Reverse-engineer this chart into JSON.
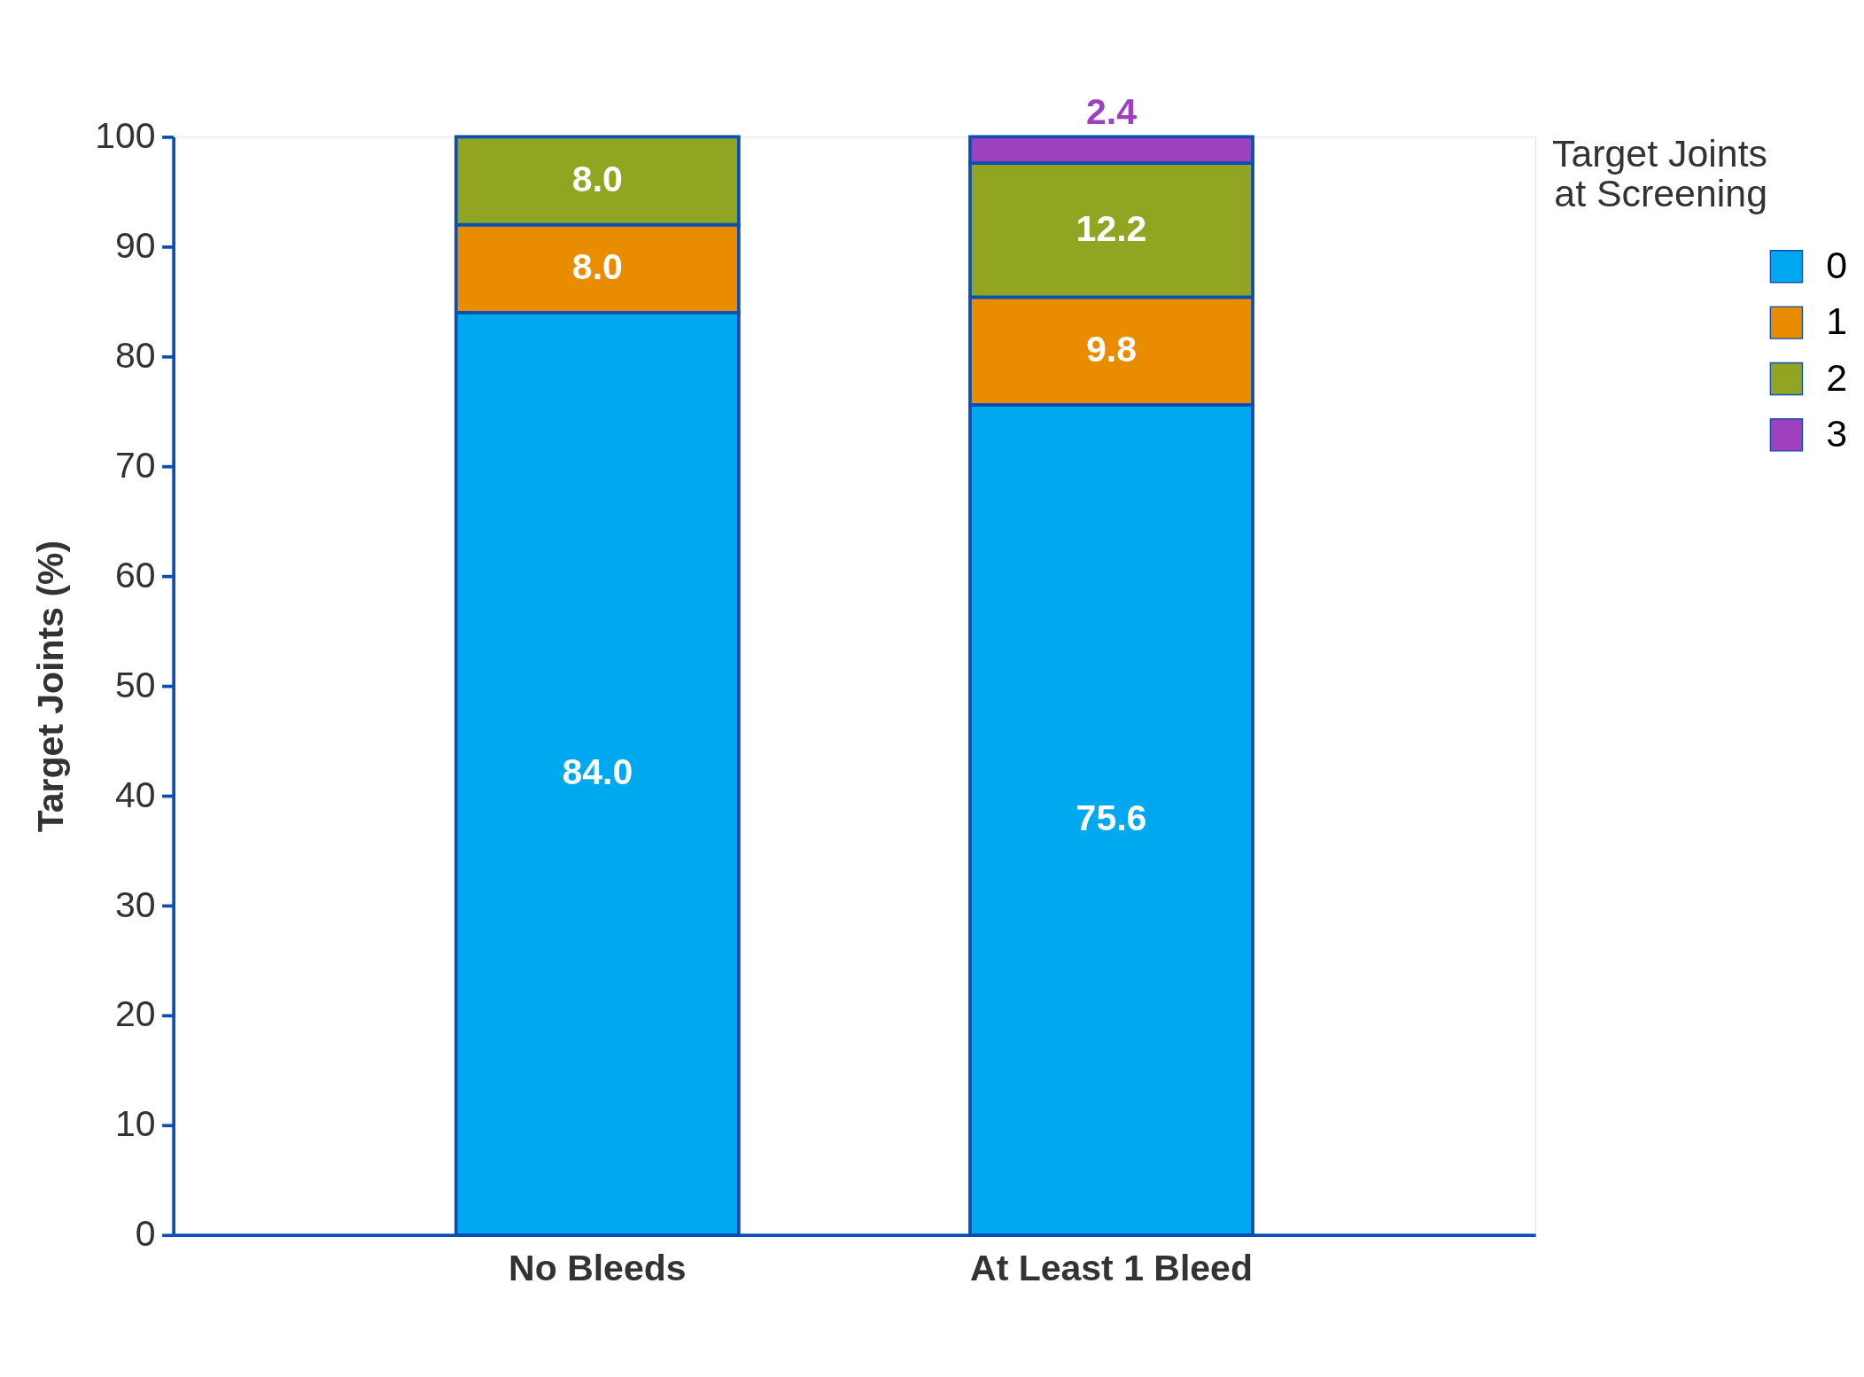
{
  "chart_data": {
    "type": "bar",
    "stacked": true,
    "ylabel": "Target Joints (%)",
    "legend_title": "Target Joints\nat Screening",
    "categories": [
      "No Bleeds",
      "At Least 1 Bleed"
    ],
    "series": [
      {
        "name": "0",
        "color": "#00a9ef",
        "values": [
          84.0,
          75.6
        ],
        "value_labels": [
          "84.0",
          "75.6"
        ]
      },
      {
        "name": "1",
        "color": "#ea8c00",
        "values": [
          8.0,
          9.8
        ],
        "value_labels": [
          "8.0",
          "9.8"
        ]
      },
      {
        "name": "2",
        "color": "#92a523",
        "values": [
          8.0,
          12.2
        ],
        "value_labels": [
          "8.0",
          "12.2"
        ]
      },
      {
        "name": "3",
        "color": "#9e40c0",
        "values": [
          null,
          2.4
        ],
        "value_labels": [
          null,
          "2.4"
        ]
      }
    ],
    "ylim": [
      0,
      100
    ],
    "yticks": [
      0,
      10,
      20,
      30,
      40,
      50,
      60,
      70,
      80,
      90,
      100
    ],
    "legend": "top right",
    "grid": false
  }
}
